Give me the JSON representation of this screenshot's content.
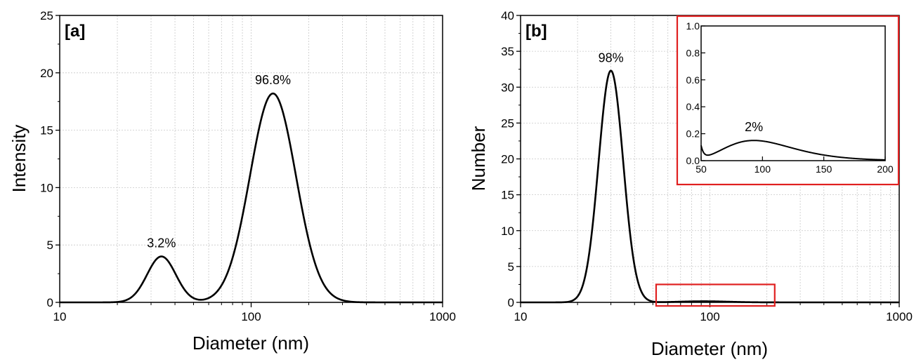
{
  "chart_data": [
    {
      "type": "line",
      "panel_label": "[a]",
      "xlabel": "Diameter (nm)",
      "ylabel": "Intensity",
      "xscale": "log",
      "xlim": [
        10,
        1000
      ],
      "ylim": [
        0,
        25
      ],
      "xticks": [
        "10",
        "100",
        "1000"
      ],
      "yticks": [
        "0",
        "5",
        "10",
        "15",
        "20",
        "25"
      ],
      "grid": true,
      "peaks": [
        {
          "center": 34,
          "height": 4.0,
          "sigma_log10": 0.075
        },
        {
          "center": 130,
          "height": 18.2,
          "sigma_log10": 0.12
        }
      ],
      "annotations": [
        {
          "text": "3.2%",
          "x": 34,
          "y": 4.8
        },
        {
          "text": "96.8%",
          "x": 130,
          "y": 19.0
        }
      ]
    },
    {
      "type": "line",
      "panel_label": "[b]",
      "xlabel": "Diameter (nm)",
      "ylabel": "Number",
      "xscale": "log",
      "xlim": [
        10,
        1000
      ],
      "ylim": [
        0,
        40
      ],
      "xticks": [
        "10",
        "100",
        "1000"
      ],
      "yticks": [
        "0",
        "5",
        "10",
        "15",
        "20",
        "25",
        "30",
        "35",
        "40"
      ],
      "grid": true,
      "peaks": [
        {
          "center": 30,
          "height": 32.3,
          "sigma_log10": 0.065
        },
        {
          "center": 93,
          "height": 0.15,
          "sigma_log10": 0.13
        }
      ],
      "annotations": [
        {
          "text": "98%",
          "x": 30,
          "y": 33.5
        }
      ],
      "highlight_box": {
        "x": [
          52,
          220
        ],
        "y": [
          -0.5,
          2.5
        ]
      },
      "inset": {
        "type": "line",
        "xlim": [
          50,
          200
        ],
        "ylim": [
          0,
          1.0
        ],
        "xticks": [
          "50",
          "100",
          "150",
          "200"
        ],
        "yticks": [
          "0.0",
          "0.2",
          "0.4",
          "0.6",
          "0.8",
          "1.0"
        ],
        "annotations": [
          {
            "text": "2%",
            "x": 93,
            "y": 0.22
          }
        ]
      }
    }
  ]
}
